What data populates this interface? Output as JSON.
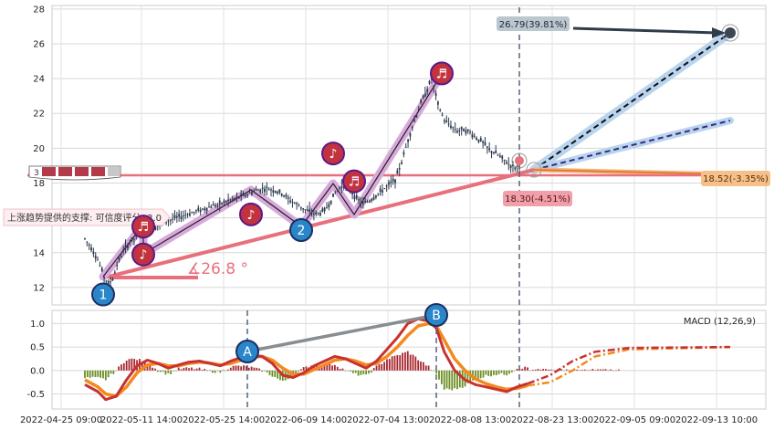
{
  "chart_data": [
    {
      "type": "candlestick",
      "panel": "price",
      "ylim": [
        11,
        28.2
      ],
      "yticks": [
        "12",
        "14",
        "16",
        "18",
        "20",
        "22",
        "24",
        "26",
        "28"
      ],
      "grid": true,
      "price_series": [
        [
          0,
          14.8
        ],
        [
          3,
          14.3
        ],
        [
          6,
          13.6
        ],
        [
          9,
          12.6
        ],
        [
          11,
          12.2
        ],
        [
          13,
          12.5
        ],
        [
          15,
          13.3
        ],
        [
          18,
          14.1
        ],
        [
          21,
          14.6
        ],
        [
          25,
          15.0
        ],
        [
          30,
          15.3
        ],
        [
          35,
          15.6
        ],
        [
          40,
          15.9
        ],
        [
          45,
          16.1
        ],
        [
          50,
          16.3
        ],
        [
          55,
          16.5
        ],
        [
          60,
          16.7
        ],
        [
          65,
          16.9
        ],
        [
          70,
          17.1
        ],
        [
          75,
          17.3
        ],
        [
          80,
          17.6
        ],
        [
          85,
          17.7
        ],
        [
          88,
          17.6
        ],
        [
          92,
          17.4
        ],
        [
          96,
          17.0
        ],
        [
          100,
          16.7
        ],
        [
          104,
          16.4
        ],
        [
          108,
          16.2
        ],
        [
          112,
          16.4
        ],
        [
          115,
          17.0
        ],
        [
          118,
          17.6
        ],
        [
          121,
          17.9
        ],
        [
          124,
          17.6
        ],
        [
          127,
          17.1
        ],
        [
          130,
          16.8
        ],
        [
          133,
          17.0
        ],
        [
          136,
          17.3
        ],
        [
          139,
          17.6
        ],
        [
          142,
          17.9
        ],
        [
          145,
          18.2
        ],
        [
          148,
          19.2
        ],
        [
          151,
          20.5
        ],
        [
          154,
          21.6
        ],
        [
          157,
          22.6
        ],
        [
          160,
          23.4
        ],
        [
          162,
          24.0
        ],
        [
          165,
          22.5
        ],
        [
          168,
          21.6
        ],
        [
          171,
          21.3
        ],
        [
          174,
          21.0
        ],
        [
          177,
          21.1
        ],
        [
          180,
          20.9
        ],
        [
          183,
          20.6
        ],
        [
          186,
          20.3
        ],
        [
          189,
          19.9
        ],
        [
          192,
          19.7
        ],
        [
          195,
          19.4
        ],
        [
          198,
          19.1
        ],
        [
          201,
          18.9
        ],
        [
          203,
          19.0
        ]
      ],
      "pattern_markers": [
        {
          "label": "1",
          "price": 11.6
        },
        {
          "label": "2",
          "price": 15.3
        },
        {
          "label": "",
          "price": 13.9,
          "icon": "music-note"
        },
        {
          "label": "",
          "price": 15.5,
          "icon": "music-note"
        },
        {
          "label": "",
          "price": 19.7,
          "icon": "music-note"
        },
        {
          "label": "",
          "price": 18.1,
          "icon": "music-note"
        },
        {
          "label": "",
          "price": 16.2,
          "icon": "music-note"
        },
        {
          "label": "",
          "price": 24.3,
          "icon": "music-note"
        }
      ],
      "annotations": {
        "support_label": "上涨趋势提供的支撑: 可信度评分: 3.0",
        "angle_label": "∡26.8 °",
        "target_high": "26.79(39.81%)",
        "target_mid": "18.30(-4.51%)",
        "target_low": "18.52(-3.35%)",
        "boxed_marks": "3"
      }
    },
    {
      "type": "bar+line",
      "panel": "macd",
      "title": "MACD (12,26,9)",
      "ylim": [
        -0.82,
        1.28
      ],
      "yticks": [
        "1.0",
        "0.5",
        "0.0",
        "-0.5"
      ],
      "xticks": [
        "2022-04-25 09:00",
        "2022-05-11 14:00",
        "2022-05-25 14:00",
        "2022-06-09 14:00",
        "2022-07-04 13:00",
        "2022-08-08 13:00",
        "2022-08-23 13:00",
        "2022-09-05 09:00",
        "2022-09-13 10:00"
      ],
      "macd_line": [
        [
          0,
          -0.3
        ],
        [
          5,
          -0.45
        ],
        [
          8,
          -0.62
        ],
        [
          12,
          -0.55
        ],
        [
          16,
          -0.2
        ],
        [
          20,
          0.1
        ],
        [
          24,
          0.22
        ],
        [
          28,
          0.15
        ],
        [
          32,
          0.05
        ],
        [
          36,
          0.12
        ],
        [
          40,
          0.18
        ],
        [
          44,
          0.2
        ],
        [
          48,
          0.15
        ],
        [
          52,
          0.1
        ],
        [
          56,
          0.2
        ],
        [
          60,
          0.28
        ],
        [
          64,
          0.32
        ],
        [
          68,
          0.3
        ],
        [
          72,
          0.15
        ],
        [
          76,
          -0.1
        ],
        [
          80,
          -0.15
        ],
        [
          84,
          -0.05
        ],
        [
          88,
          0.1
        ],
        [
          92,
          0.2
        ],
        [
          96,
          0.3
        ],
        [
          100,
          0.25
        ],
        [
          104,
          0.15
        ],
        [
          108,
          0.05
        ],
        [
          112,
          0.2
        ],
        [
          116,
          0.45
        ],
        [
          120,
          0.7
        ],
        [
          124,
          1.0
        ],
        [
          128,
          1.1
        ],
        [
          132,
          1.05
        ],
        [
          135,
          0.9
        ],
        [
          138,
          0.4
        ],
        [
          142,
          0.0
        ],
        [
          146,
          -0.2
        ],
        [
          150,
          -0.3
        ],
        [
          154,
          -0.35
        ],
        [
          158,
          -0.4
        ],
        [
          162,
          -0.45
        ],
        [
          166,
          -0.35
        ],
        [
          170,
          -0.28
        ]
      ],
      "signal_line": [
        [
          0,
          -0.2
        ],
        [
          5,
          -0.35
        ],
        [
          8,
          -0.5
        ],
        [
          12,
          -0.55
        ],
        [
          16,
          -0.35
        ],
        [
          20,
          -0.05
        ],
        [
          24,
          0.12
        ],
        [
          28,
          0.15
        ],
        [
          32,
          0.1
        ],
        [
          36,
          0.1
        ],
        [
          40,
          0.15
        ],
        [
          44,
          0.18
        ],
        [
          48,
          0.16
        ],
        [
          52,
          0.12
        ],
        [
          56,
          0.15
        ],
        [
          60,
          0.22
        ],
        [
          64,
          0.28
        ],
        [
          68,
          0.3
        ],
        [
          72,
          0.22
        ],
        [
          76,
          0.05
        ],
        [
          80,
          -0.08
        ],
        [
          84,
          -0.08
        ],
        [
          88,
          0.02
        ],
        [
          92,
          0.12
        ],
        [
          96,
          0.22
        ],
        [
          100,
          0.25
        ],
        [
          104,
          0.2
        ],
        [
          108,
          0.12
        ],
        [
          112,
          0.15
        ],
        [
          116,
          0.3
        ],
        [
          120,
          0.5
        ],
        [
          124,
          0.75
        ],
        [
          128,
          0.95
        ],
        [
          132,
          1.0
        ],
        [
          135,
          0.95
        ],
        [
          138,
          0.65
        ],
        [
          142,
          0.25
        ],
        [
          146,
          0.0
        ],
        [
          150,
          -0.18
        ],
        [
          154,
          -0.28
        ],
        [
          158,
          -0.35
        ],
        [
          162,
          -0.4
        ],
        [
          166,
          -0.38
        ],
        [
          170,
          -0.32
        ]
      ],
      "macd_projection": [
        [
          170,
          -0.28
        ],
        [
          180,
          -0.1
        ],
        [
          190,
          0.2
        ],
        [
          200,
          0.4
        ],
        [
          215,
          0.48
        ],
        [
          260,
          0.5
        ]
      ],
      "signal_projection": [
        [
          170,
          -0.32
        ],
        [
          180,
          -0.25
        ],
        [
          190,
          0.0
        ],
        [
          200,
          0.3
        ],
        [
          215,
          0.45
        ],
        [
          260,
          0.5
        ]
      ],
      "divergence_points": [
        {
          "label": "A",
          "value": 0.35
        },
        {
          "label": "B",
          "value": 1.22
        }
      ]
    }
  ]
}
